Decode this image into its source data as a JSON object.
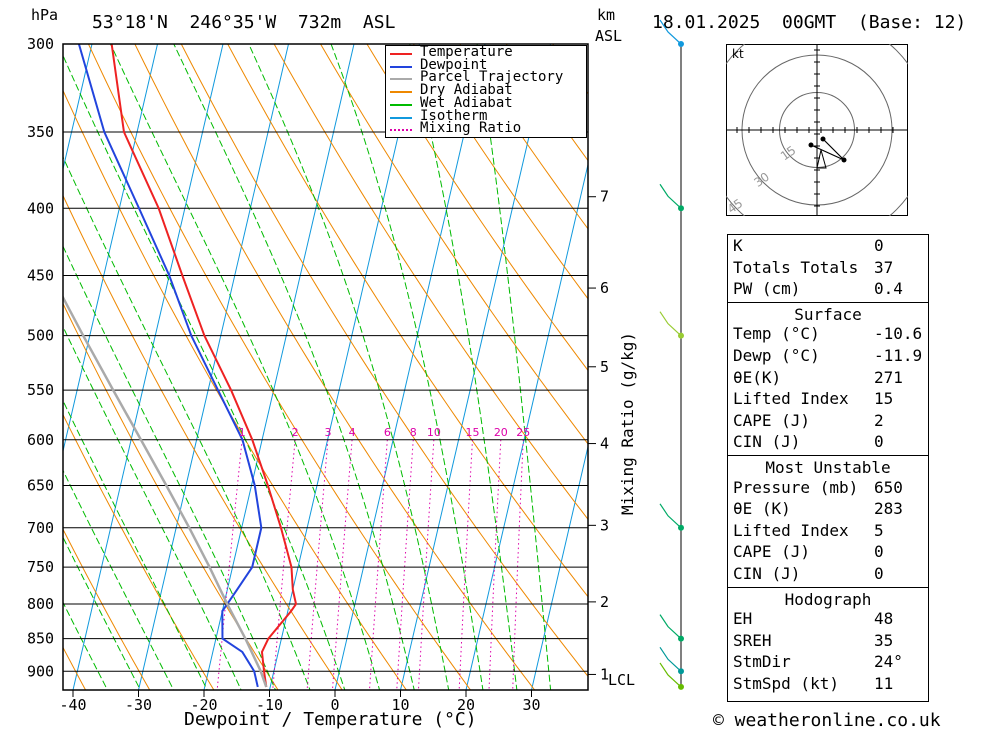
{
  "header": {
    "hpa_label": "hPa",
    "location": "53°18'N  246°35'W  732m  ASL",
    "km_label": "km",
    "asl_label": "ASL",
    "datetime": "18.01.2025  00GMT  (Base: 12)"
  },
  "chart_data": {
    "type": "line",
    "title": "",
    "xlabel": "Dewpoint / Temperature (°C)",
    "ylabel": "hPa",
    "x_ticks": [
      -40,
      -30,
      -20,
      -10,
      0,
      10,
      20,
      30
    ],
    "pressure_levels": [
      300,
      350,
      400,
      450,
      500,
      550,
      600,
      650,
      700,
      750,
      800,
      850,
      900
    ],
    "p_range": [
      300,
      930
    ],
    "km_ticks": [
      {
        "label": "7",
        "p": 392
      },
      {
        "label": "6",
        "p": 460
      },
      {
        "label": "5",
        "p": 528
      },
      {
        "label": "4",
        "p": 604
      },
      {
        "label": "3",
        "p": 697
      },
      {
        "label": "2",
        "p": 797
      },
      {
        "label": "1",
        "p": 905
      }
    ],
    "lcl_label": "LCL",
    "mixing_ratio_axis_label": "Mixing Ratio (g/kg)",
    "mixing_ratio_labels": [
      "1",
      "2",
      "3",
      "4",
      "6",
      "8",
      "10",
      "15",
      "20",
      "25"
    ],
    "legend": [
      "Temperature",
      "Dewpoint",
      "Parcel Trajectory",
      "Dry Adiabat",
      "Wet Adiabat",
      "Isotherm",
      "Mixing Ratio"
    ],
    "colors": {
      "temperature": "#ee2222",
      "dewpoint": "#2244dd",
      "parcel": "#aaaaaa",
      "dry_adiabat": "#ee8800",
      "wet_adiabat": "#00bb00",
      "isotherm": "#1199dd",
      "mixing_ratio": "#dd00aa"
    },
    "series": [
      {
        "name": "Temperature",
        "p": [
          925,
          900,
          870,
          850,
          810,
          800,
          780,
          750,
          700,
          650,
          600,
          550,
          500,
          450,
          400,
          350,
          300
        ],
        "t": [
          -10.6,
          -11.5,
          -12.5,
          -12.0,
          -9.5,
          -9.0,
          -10.0,
          -11.0,
          -14.0,
          -17.5,
          -21.5,
          -26.5,
          -32.5,
          -38.0,
          -44.0,
          -52.0,
          -57.0
        ]
      },
      {
        "name": "Dewpoint",
        "p": [
          925,
          900,
          870,
          850,
          810,
          800,
          780,
          750,
          700,
          650,
          600,
          550,
          500,
          450,
          400,
          350,
          300
        ],
        "t": [
          -11.9,
          -13.0,
          -15.5,
          -19.0,
          -20.0,
          -19.5,
          -18.5,
          -17.0,
          -17.0,
          -19.5,
          -23.0,
          -28.5,
          -34.5,
          -40.0,
          -47.0,
          -55.0,
          -62.0
        ]
      },
      {
        "name": "Parcel Trajectory",
        "p": [
          925,
          900,
          850,
          800,
          750,
          700,
          650,
          600,
          550,
          500,
          450,
          400,
          350
        ],
        "t": [
          -10.6,
          -12.0,
          -15.5,
          -19.5,
          -23.5,
          -28.0,
          -33.0,
          -38.5,
          -44.5,
          -51.0,
          -58.0,
          -66.0,
          -75.0
        ]
      }
    ]
  },
  "hodograph": {
    "unit_label": "kt",
    "ring_labels": [
      "15",
      "30",
      "45"
    ],
    "points": [
      {
        "u": 2,
        "v": -3
      },
      {
        "u": 9,
        "v": -10
      },
      {
        "u": -2,
        "v": -5
      }
    ]
  },
  "wind_profile": [
    {
      "p": 300,
      "color": "#1199dd"
    },
    {
      "p": 400,
      "color": "#00aa66"
    },
    {
      "p": 500,
      "color": "#99cc33"
    },
    {
      "p": 700,
      "color": "#00aa66"
    },
    {
      "p": 850,
      "color": "#00aa66"
    },
    {
      "p": 900,
      "color": "#009999"
    },
    {
      "p": 925,
      "color": "#66bb00"
    }
  ],
  "indices": [
    {
      "k": "K",
      "v": "0"
    },
    {
      "k": "Totals Totals",
      "v": "37"
    },
    {
      "k": "PW (cm)",
      "v": "0.4"
    }
  ],
  "surface": {
    "title": "Surface",
    "rows": [
      {
        "k": "Temp (°C)",
        "v": "-10.6"
      },
      {
        "k": "Dewp (°C)",
        "v": "-11.9"
      },
      {
        "k": "θE(K)",
        "v": "271"
      },
      {
        "k": "Lifted Index",
        "v": "15"
      },
      {
        "k": "CAPE (J)",
        "v": "2"
      },
      {
        "k": "CIN (J)",
        "v": "0"
      }
    ]
  },
  "most_unstable": {
    "title": "Most Unstable",
    "rows": [
      {
        "k": "Pressure (mb)",
        "v": "650"
      },
      {
        "k": "θE (K)",
        "v": "283"
      },
      {
        "k": "Lifted Index",
        "v": "5"
      },
      {
        "k": "CAPE (J)",
        "v": "0"
      },
      {
        "k": "CIN (J)",
        "v": "0"
      }
    ]
  },
  "hodograph_table": {
    "title": "Hodograph",
    "rows": [
      {
        "k": "EH",
        "v": "48"
      },
      {
        "k": "SREH",
        "v": "35"
      },
      {
        "k": "StmDir",
        "v": "24°"
      },
      {
        "k": "StmSpd (kt)",
        "v": "11"
      }
    ]
  },
  "copyright": "© weatheronline.co.uk"
}
